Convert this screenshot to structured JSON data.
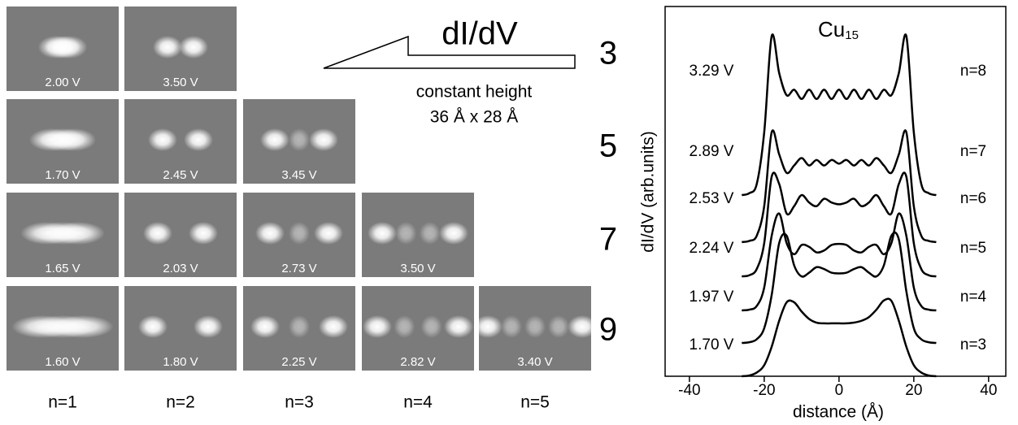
{
  "figure": {
    "rows": [
      {
        "label": "3",
        "tiles": [
          "2.00 V",
          "3.50 V"
        ]
      },
      {
        "label": "5",
        "tiles": [
          "1.70 V",
          "2.45 V",
          "3.45 V"
        ]
      },
      {
        "label": "7",
        "tiles": [
          "1.65 V",
          "2.03 V",
          "2.73 V",
          "3.50 V"
        ]
      },
      {
        "label": "9",
        "tiles": [
          "1.60 V",
          "1.80 V",
          "2.25 V",
          "2.82 V",
          "3.40 V"
        ]
      }
    ],
    "columns": [
      "n=1",
      "n=2",
      "n=3",
      "n=4",
      "n=5"
    ],
    "annotation": {
      "signal": "dI/dV",
      "mode": "constant height",
      "size": "36 Å x 28 Å"
    }
  },
  "chart_data": {
    "type": "line",
    "title": "Cu",
    "title_subscript": "15",
    "x_label": "distance (Å)",
    "y_label": "dI/dV (arb.units)",
    "xlim": [
      -46.5,
      44.6
    ],
    "xticks": [
      -40,
      -20,
      0,
      20,
      40
    ],
    "ylim": [
      0,
      100
    ],
    "x": [
      -26,
      -24,
      -22,
      -20,
      -18,
      -16,
      -14,
      -12,
      -10,
      -8,
      -6,
      -4,
      -2,
      0,
      2,
      4,
      6,
      8,
      10,
      12,
      14,
      16,
      18,
      20,
      22,
      24,
      26
    ],
    "series": [
      {
        "name": "n=8",
        "voltage": "3.29 V",
        "color": "#000000",
        "values": [
          49,
          49.5,
          52,
          66,
          92,
          82,
          76,
          77.5,
          75,
          77.5,
          75,
          77.5,
          75,
          77.5,
          75,
          77.5,
          75,
          77.5,
          75,
          77.5,
          76,
          82,
          92,
          66,
          52,
          49.5,
          49
        ]
      },
      {
        "name": "n=7",
        "voltage": "2.89 V",
        "color": "#000000",
        "values": [
          36.3,
          36.6,
          38,
          46,
          66,
          60,
          55,
          57,
          59,
          57,
          58.5,
          57,
          58.5,
          57.5,
          58.5,
          57,
          58.5,
          57,
          59,
          57,
          55,
          60,
          66,
          46,
          38,
          36.6,
          36.3
        ]
      },
      {
        "name": "n=6",
        "voltage": "2.53 V",
        "color": "#000000",
        "values": [
          27,
          27.3,
          29,
          36,
          54,
          52,
          44,
          46,
          49,
          47,
          46,
          48,
          47,
          46.5,
          47,
          48,
          46,
          47,
          49,
          46,
          44,
          52,
          54,
          36,
          29,
          27.3,
          27
        ]
      },
      {
        "name": "n=5",
        "voltage": "2.24 V",
        "color": "#000000",
        "values": [
          17.8,
          18,
          19,
          24,
          38,
          44,
          36,
          33,
          35.5,
          35,
          33.5,
          34,
          35.5,
          35.8,
          35.5,
          34,
          33.5,
          35,
          35.5,
          33,
          36,
          44,
          38,
          24,
          19,
          18,
          17.8
        ]
      },
      {
        "name": "n=4",
        "voltage": "1.97 V",
        "color": "#000000",
        "values": [
          9,
          9.2,
          10,
          13,
          22,
          36,
          38,
          30,
          27,
          28,
          29.5,
          29,
          28,
          27.8,
          28,
          29,
          29.5,
          28,
          27,
          30,
          38,
          37,
          23,
          13,
          10,
          9.2,
          9
        ]
      },
      {
        "name": "n=3",
        "voltage": "1.70 V",
        "color": "#000000",
        "values": [
          0,
          0.2,
          1,
          3,
          8,
          15,
          20,
          20,
          17.5,
          15.5,
          14.5,
          14.3,
          14.3,
          14.3,
          14.3,
          14.5,
          15,
          16,
          18,
          20.5,
          20.4,
          15,
          8,
          3,
          1,
          0.2,
          0
        ]
      }
    ]
  }
}
